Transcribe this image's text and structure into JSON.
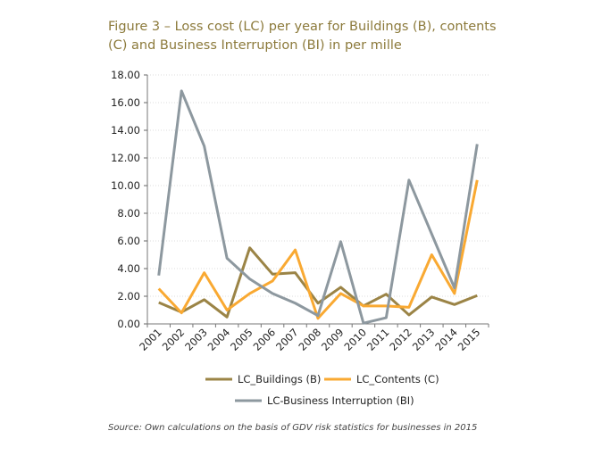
{
  "chart_data": {
    "type": "line",
    "title": "Figure 3 – Loss cost (LC) per year for Buildings (B), contents (C) and Business Interruption (BI) in per mille",
    "source": "Source: Own calculations on the basis of GDV risk statistics for businesses in 2015",
    "categories": [
      "2001",
      "2002",
      "2003",
      "2004",
      "2005",
      "2006",
      "2007",
      "2008",
      "2009",
      "2010",
      "2011",
      "2012",
      "2013",
      "2014",
      "2015"
    ],
    "ylim": [
      0,
      18
    ],
    "yticks": [
      "0.00",
      "2.00",
      "4.00",
      "6.00",
      "8.00",
      "10.00",
      "12.00",
      "14.00",
      "16.00",
      "18.00"
    ],
    "grid": true,
    "legend": "bottom",
    "series": [
      {
        "name": "LC_Buildings (B)",
        "color": "#9b8446",
        "values": [
          1.55,
          0.85,
          1.75,
          0.5,
          5.5,
          3.6,
          3.7,
          1.5,
          2.65,
          1.3,
          2.15,
          0.65,
          1.95,
          1.4,
          2.05
        ]
      },
      {
        "name": "LC_Contents (C)",
        "color": "#f9a932",
        "values": [
          2.55,
          0.8,
          3.7,
          1.0,
          2.2,
          3.1,
          5.35,
          0.4,
          2.2,
          1.3,
          1.3,
          1.2,
          5.0,
          2.2,
          10.4
        ]
      },
      {
        "name": "LC-Business Interruption (BI)",
        "color": "#8d989f",
        "values": [
          3.5,
          16.85,
          12.85,
          4.75,
          3.25,
          2.2,
          1.5,
          0.6,
          5.95,
          0.05,
          0.45,
          10.4,
          6.5,
          2.6,
          13.0
        ]
      }
    ]
  }
}
